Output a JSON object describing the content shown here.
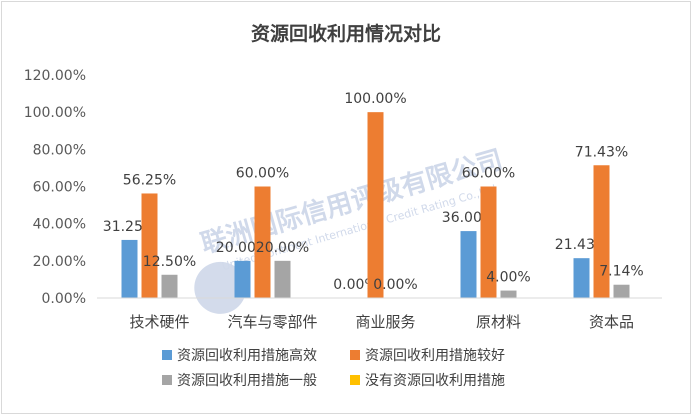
{
  "chart_data": {
    "type": "bar",
    "title": "资源回收利用情况对比",
    "categories": [
      "技术硬件",
      "汽车与零部件",
      "商业服务",
      "原材料",
      "资本品"
    ],
    "series": [
      {
        "name": "资源回收利用措施高效",
        "color": "#5b9bd5",
        "values": [
          31.25,
          20.0,
          0.0,
          36.0,
          21.43
        ]
      },
      {
        "name": "资源回收利用措施较好",
        "color": "#ed7d31",
        "values": [
          56.25,
          60.0,
          100.0,
          60.0,
          71.43
        ]
      },
      {
        "name": "资源回收利用措施一般",
        "color": "#a5a5a5",
        "values": [
          12.5,
          20.0,
          0.0,
          4.0,
          7.14
        ]
      },
      {
        "name": "没有资源回收利用措施",
        "color": "#ffc000",
        "values": [
          null,
          null,
          null,
          null,
          null
        ]
      }
    ],
    "ylim": [
      0,
      120
    ],
    "yticks": [
      0,
      20,
      40,
      60,
      80,
      100,
      120
    ],
    "value_format": "percent-2dp",
    "grid": false,
    "legend": "bottom",
    "data_labels": true
  },
  "watermark": {
    "line1": "联洲国际信用评级有限公司",
    "line2": "United Continent International Credit Rating Co.,Ltd"
  }
}
